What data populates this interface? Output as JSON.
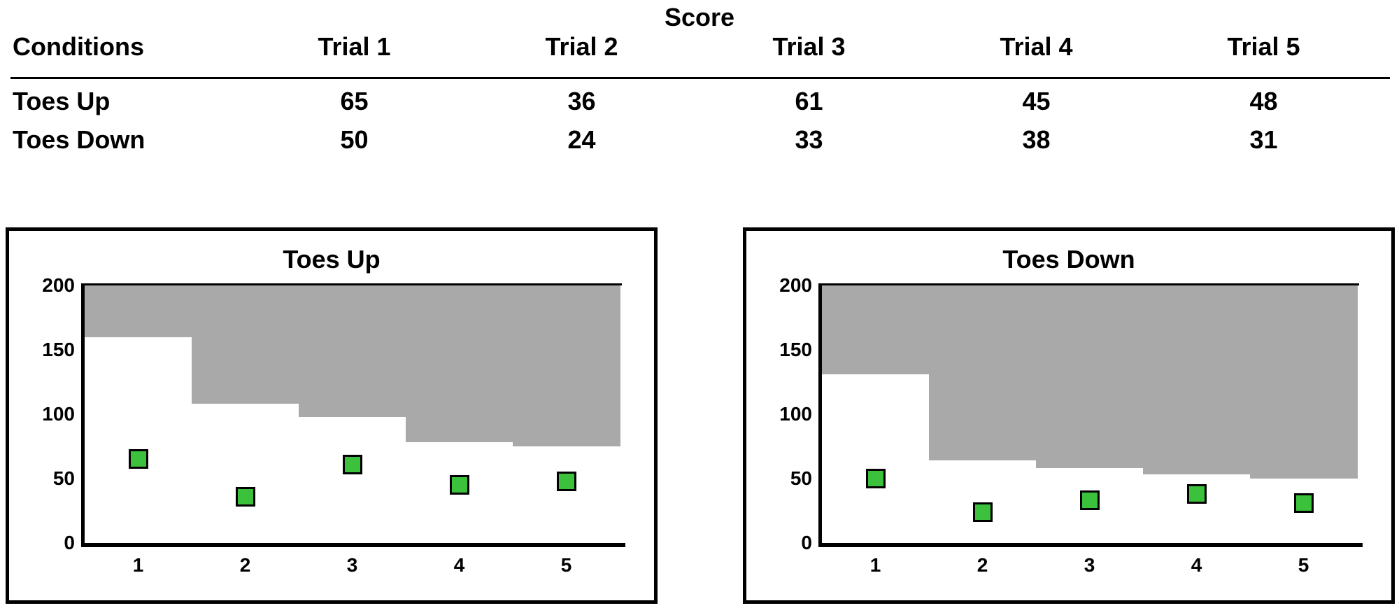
{
  "table": {
    "title": "Score",
    "columns": [
      "Conditions",
      "Trial 1",
      "Trial 2",
      "Trial 3",
      "Trial 4",
      "Trial 5"
    ],
    "rows": [
      {
        "label": "Toes Up",
        "values": [
          "65",
          "36",
          "61",
          "45",
          "48"
        ]
      },
      {
        "label": "Toes Down",
        "values": [
          "50",
          "24",
          "33",
          "38",
          "31"
        ]
      }
    ]
  },
  "chart_data": [
    {
      "type": "scatter",
      "title": "Toes Up",
      "xlabel": "",
      "ylabel": "",
      "x": [
        1,
        2,
        3,
        4,
        5
      ],
      "xtick_labels": [
        "1",
        "2",
        "3",
        "4",
        "5"
      ],
      "values": [
        65,
        36,
        61,
        45,
        48
      ],
      "ylim": [
        0,
        200
      ],
      "yticks": [
        0,
        50,
        100,
        150,
        200
      ],
      "marker": "green-square",
      "grid": false,
      "legend": false,
      "shaded_region": "gray area from ceiling_steps up to 200 for each trial column",
      "ceiling_steps": [
        160,
        108,
        98,
        78,
        75
      ]
    },
    {
      "type": "scatter",
      "title": "Toes Down",
      "xlabel": "",
      "ylabel": "",
      "x": [
        1,
        2,
        3,
        4,
        5
      ],
      "xtick_labels": [
        "1",
        "2",
        "3",
        "4",
        "5"
      ],
      "values": [
        50,
        24,
        33,
        38,
        31
      ],
      "ylim": [
        0,
        200
      ],
      "yticks": [
        0,
        50,
        100,
        150,
        200
      ],
      "marker": "green-square",
      "grid": false,
      "legend": false,
      "shaded_region": "gray area from ceiling_steps up to 200 for each trial column",
      "ceiling_steps": [
        131,
        64,
        58,
        53,
        50
      ]
    }
  ],
  "colors": {
    "marker_green": "#3cc13c",
    "marker_border": "#000000",
    "region_gray": "#a9a9a9",
    "axis": "#000000",
    "panel_border": "#000000"
  }
}
